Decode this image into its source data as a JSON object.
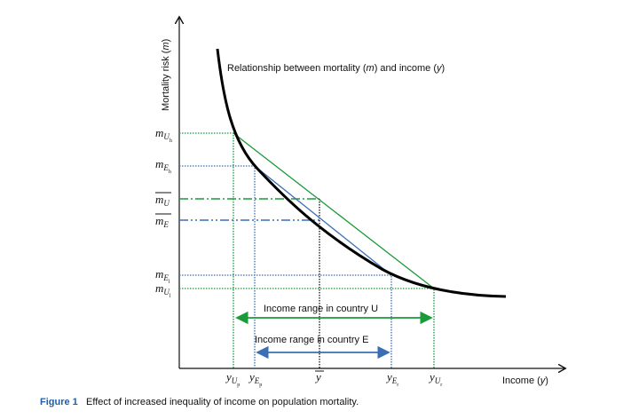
{
  "y_axis_label": [
    "Mortality risk (",
    "m",
    ")"
  ],
  "x_axis_label": [
    "Income (",
    "y",
    ")"
  ],
  "curve_label": [
    "Relationship between mortality (",
    "m",
    ") and income (",
    "y",
    ")"
  ],
  "y_labels": [
    {
      "base": "m",
      "sub": "U",
      "subsub": "h"
    },
    {
      "base": "m",
      "sub": "E",
      "subsub": "h"
    },
    {
      "base": "m",
      "sub": "U"
    },
    {
      "base": "m",
      "sub": "E"
    },
    {
      "base": "m",
      "sub": "E",
      "subsub": "l"
    },
    {
      "base": "m",
      "sub": "U",
      "subsub": "l"
    }
  ],
  "x_labels": [
    {
      "base": "y",
      "sub": "U",
      "subsub": "p"
    },
    {
      "base": "y",
      "sub": "E",
      "subsub": "p"
    },
    {
      "base": "y"
    },
    {
      "base": "y",
      "sub": "E",
      "subsub": "r"
    },
    {
      "base": "y",
      "sub": "U",
      "subsub": "r"
    }
  ],
  "ranges": [
    "Income range in country U",
    "Income range in country E"
  ],
  "caption": {
    "label": "Figure 1",
    "text": "Effect of increased inequality of income on population mortality."
  }
}
